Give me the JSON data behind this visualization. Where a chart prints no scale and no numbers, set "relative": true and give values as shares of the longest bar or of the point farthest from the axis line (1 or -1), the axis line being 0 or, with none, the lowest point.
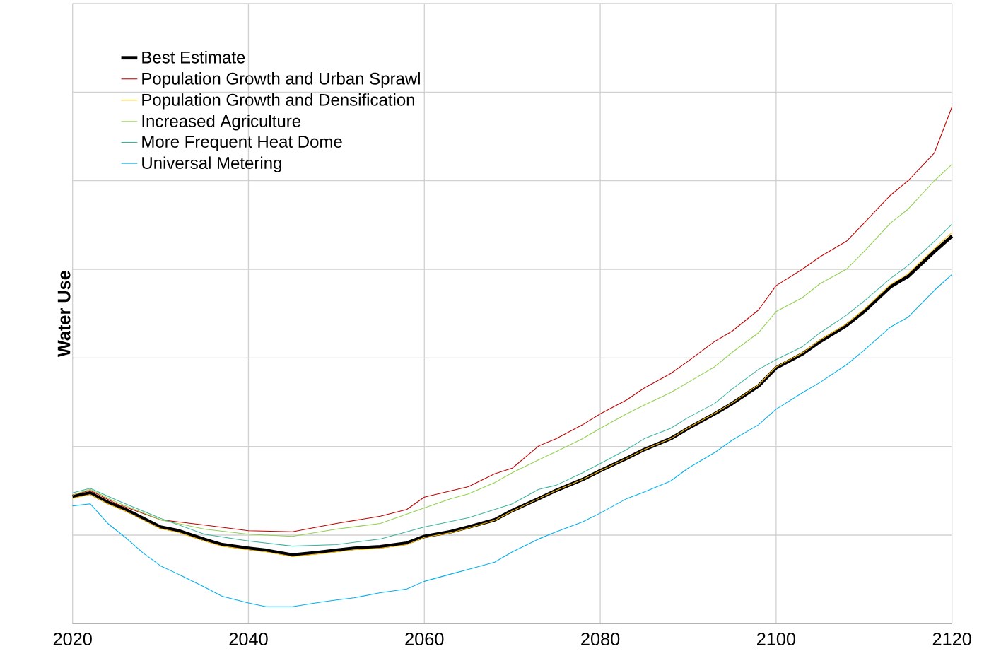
{
  "chart_data": {
    "type": "line",
    "relative": true,
    "ylabel": "Water Use",
    "xlim": [
      2020,
      2120
    ],
    "xticks": [
      2020,
      2040,
      2060,
      2080,
      2100,
      2120
    ],
    "grid": true,
    "legend": "top left",
    "tick_labels": "x",
    "marker": "none",
    "line_style": "solid",
    "series": [
      {
        "name": "Best Estimate",
        "color": "#000000",
        "x": [
          2020,
          2022,
          2024,
          2026,
          2028,
          2030,
          2032,
          2035,
          2037,
          2040,
          2042,
          2045,
          2048,
          2050,
          2052,
          2055,
          2058,
          2060,
          2063,
          2065,
          2068,
          2070,
          2073,
          2075,
          2078,
          2080,
          2083,
          2085,
          2088,
          2090,
          2093,
          2095,
          2098,
          2100,
          2103,
          2105,
          2108,
          2110,
          2113,
          2115,
          2118,
          2120
        ],
        "values": [
          0.246,
          0.253,
          0.235,
          0.221,
          0.204,
          0.187,
          0.18,
          0.163,
          0.153,
          0.146,
          0.142,
          0.133,
          0.138,
          0.142,
          0.146,
          0.149,
          0.156,
          0.169,
          0.178,
          0.187,
          0.201,
          0.219,
          0.242,
          0.258,
          0.279,
          0.296,
          0.32,
          0.337,
          0.358,
          0.378,
          0.406,
          0.426,
          0.46,
          0.495,
          0.522,
          0.546,
          0.577,
          0.604,
          0.652,
          0.672,
          0.72,
          0.75
        ]
      },
      {
        "name": "Population Growth and Urban Sprawl",
        "color": "#c00000",
        "x": [
          2020,
          2022,
          2025,
          2030,
          2035,
          2040,
          2045,
          2050,
          2055,
          2058,
          2060,
          2065,
          2068,
          2070,
          2073,
          2075,
          2078,
          2080,
          2083,
          2085,
          2088,
          2090,
          2093,
          2095,
          2098,
          2100,
          2103,
          2105,
          2108,
          2110,
          2113,
          2115,
          2118,
          2120
        ],
        "values": [
          0.249,
          0.258,
          0.232,
          0.201,
          0.191,
          0.18,
          0.178,
          0.194,
          0.208,
          0.221,
          0.245,
          0.265,
          0.29,
          0.301,
          0.344,
          0.358,
          0.385,
          0.406,
          0.433,
          0.456,
          0.484,
          0.508,
          0.546,
          0.566,
          0.607,
          0.654,
          0.686,
          0.71,
          0.74,
          0.775,
          0.829,
          0.857,
          0.911,
          1.0
        ]
      },
      {
        "name": "Population Growth and Densification",
        "color": "#ffc000",
        "x": [
          2020,
          2022,
          2024,
          2026,
          2028,
          2030,
          2032,
          2035,
          2037,
          2040,
          2042,
          2045,
          2048,
          2050,
          2052,
          2055,
          2058,
          2060,
          2063,
          2065,
          2068,
          2070,
          2073,
          2075,
          2078,
          2080,
          2083,
          2085,
          2088,
          2090,
          2093,
          2095,
          2098,
          2100,
          2103,
          2105,
          2108,
          2110,
          2113,
          2115,
          2118,
          2120
        ],
        "values": [
          0.243,
          0.25,
          0.232,
          0.218,
          0.201,
          0.184,
          0.177,
          0.16,
          0.15,
          0.143,
          0.139,
          0.13,
          0.135,
          0.139,
          0.143,
          0.146,
          0.153,
          0.167,
          0.176,
          0.185,
          0.2,
          0.218,
          0.242,
          0.258,
          0.279,
          0.296,
          0.32,
          0.337,
          0.358,
          0.379,
          0.407,
          0.427,
          0.462,
          0.497,
          0.524,
          0.549,
          0.58,
          0.608,
          0.656,
          0.677,
          0.726,
          0.757
        ]
      },
      {
        "name": "Increased Agriculture",
        "color": "#92d050",
        "x": [
          2020,
          2022,
          2025,
          2030,
          2035,
          2040,
          2045,
          2050,
          2055,
          2060,
          2063,
          2065,
          2068,
          2070,
          2073,
          2075,
          2078,
          2080,
          2083,
          2085,
          2088,
          2090,
          2093,
          2095,
          2098,
          2100,
          2103,
          2105,
          2108,
          2110,
          2113,
          2115,
          2118,
          2120
        ],
        "values": [
          0.249,
          0.26,
          0.235,
          0.201,
          0.183,
          0.173,
          0.169,
          0.183,
          0.194,
          0.224,
          0.242,
          0.251,
          0.273,
          0.292,
          0.317,
          0.333,
          0.358,
          0.378,
          0.406,
          0.423,
          0.447,
          0.467,
          0.497,
          0.525,
          0.563,
          0.604,
          0.631,
          0.658,
          0.686,
          0.72,
          0.775,
          0.802,
          0.857,
          0.889
        ]
      },
      {
        "name": "More Frequent Heat Dome",
        "color": "#3cb39e",
        "x": [
          2020,
          2022,
          2025,
          2030,
          2035,
          2040,
          2045,
          2050,
          2055,
          2060,
          2065,
          2068,
          2070,
          2073,
          2075,
          2078,
          2080,
          2083,
          2085,
          2088,
          2090,
          2093,
          2095,
          2098,
          2100,
          2103,
          2105,
          2108,
          2110,
          2113,
          2115,
          2118,
          2120
        ],
        "values": [
          0.253,
          0.262,
          0.239,
          0.204,
          0.173,
          0.16,
          0.15,
          0.153,
          0.164,
          0.187,
          0.205,
          0.221,
          0.232,
          0.26,
          0.268,
          0.292,
          0.31,
          0.337,
          0.358,
          0.378,
          0.399,
          0.426,
          0.454,
          0.492,
          0.511,
          0.536,
          0.563,
          0.597,
          0.624,
          0.668,
          0.693,
          0.74,
          0.773
        ]
      },
      {
        "name": "Universal Metering",
        "color": "#00b0f0",
        "x": [
          2020,
          2022,
          2024,
          2026,
          2028,
          2030,
          2032,
          2035,
          2037,
          2040,
          2042,
          2045,
          2048,
          2050,
          2052,
          2055,
          2058,
          2060,
          2063,
          2065,
          2068,
          2070,
          2073,
          2075,
          2078,
          2080,
          2083,
          2085,
          2088,
          2090,
          2093,
          2095,
          2098,
          2100,
          2103,
          2105,
          2108,
          2110,
          2113,
          2115,
          2118,
          2120
        ],
        "values": [
          0.228,
          0.232,
          0.194,
          0.167,
          0.137,
          0.112,
          0.096,
          0.071,
          0.053,
          0.04,
          0.033,
          0.033,
          0.041,
          0.046,
          0.05,
          0.06,
          0.067,
          0.082,
          0.096,
          0.105,
          0.119,
          0.139,
          0.164,
          0.178,
          0.197,
          0.214,
          0.242,
          0.255,
          0.276,
          0.301,
          0.331,
          0.355,
          0.385,
          0.415,
          0.447,
          0.467,
          0.501,
          0.529,
          0.574,
          0.593,
          0.645,
          0.676
        ]
      }
    ]
  }
}
